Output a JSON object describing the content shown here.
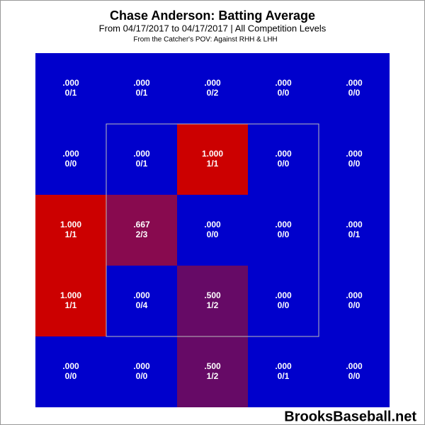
{
  "chart_data": {
    "type": "heatmap",
    "title": "Chase Anderson: Batting Average",
    "subtitle": "From 04/17/2017 to 04/17/2017 | All Competition Levels",
    "note": "From the Catcher's POV:  Against RHH & LHH",
    "watermark": "BrooksBaseball.net",
    "rows": [
      {
        "values": [
          0,
          0,
          0,
          0,
          0
        ],
        "value_labels": [
          ".000",
          ".000",
          ".000",
          ".000",
          ".000"
        ],
        "counts": [
          "0/1",
          "0/1",
          "0/2",
          "0/0",
          "0/0"
        ],
        "colors": [
          "#0000cc",
          "#0000cc",
          "#0000cc",
          "#0000cc",
          "#0000cc"
        ]
      },
      {
        "values": [
          0,
          0,
          1,
          0,
          0
        ],
        "value_labels": [
          ".000",
          ".000",
          "1.000",
          ".000",
          ".000"
        ],
        "counts": [
          "0/0",
          "0/1",
          "1/1",
          "0/0",
          "0/0"
        ],
        "colors": [
          "#0000cc",
          "#0000cc",
          "#cc0000",
          "#0000cc",
          "#0000cc"
        ]
      },
      {
        "values": [
          1,
          0.667,
          0,
          0,
          0
        ],
        "value_labels": [
          "1.000",
          ".667",
          ".000",
          ".000",
          ".000"
        ],
        "counts": [
          "1/1",
          "2/3",
          "0/0",
          "0/0",
          "0/1"
        ],
        "colors": [
          "#cc0000",
          "#880a4f",
          "#0000cc",
          "#0000cc",
          "#0000cc"
        ]
      },
      {
        "values": [
          1,
          0,
          0.5,
          0,
          0
        ],
        "value_labels": [
          "1.000",
          ".000",
          ".500",
          ".000",
          ".000"
        ],
        "counts": [
          "1/1",
          "0/4",
          "1/2",
          "0/0",
          "0/0"
        ],
        "colors": [
          "#cc0000",
          "#0000cc",
          "#660a66",
          "#0000cc",
          "#0000cc"
        ]
      },
      {
        "values": [
          0,
          0,
          0.5,
          0,
          0
        ],
        "value_labels": [
          ".000",
          ".000",
          ".500",
          ".000",
          ".000"
        ],
        "counts": [
          "0/0",
          "0/0",
          "1/2",
          "0/1",
          "0/0"
        ],
        "colors": [
          "#0000cc",
          "#0000cc",
          "#660a66",
          "#0000cc",
          "#0000cc"
        ]
      }
    ]
  }
}
